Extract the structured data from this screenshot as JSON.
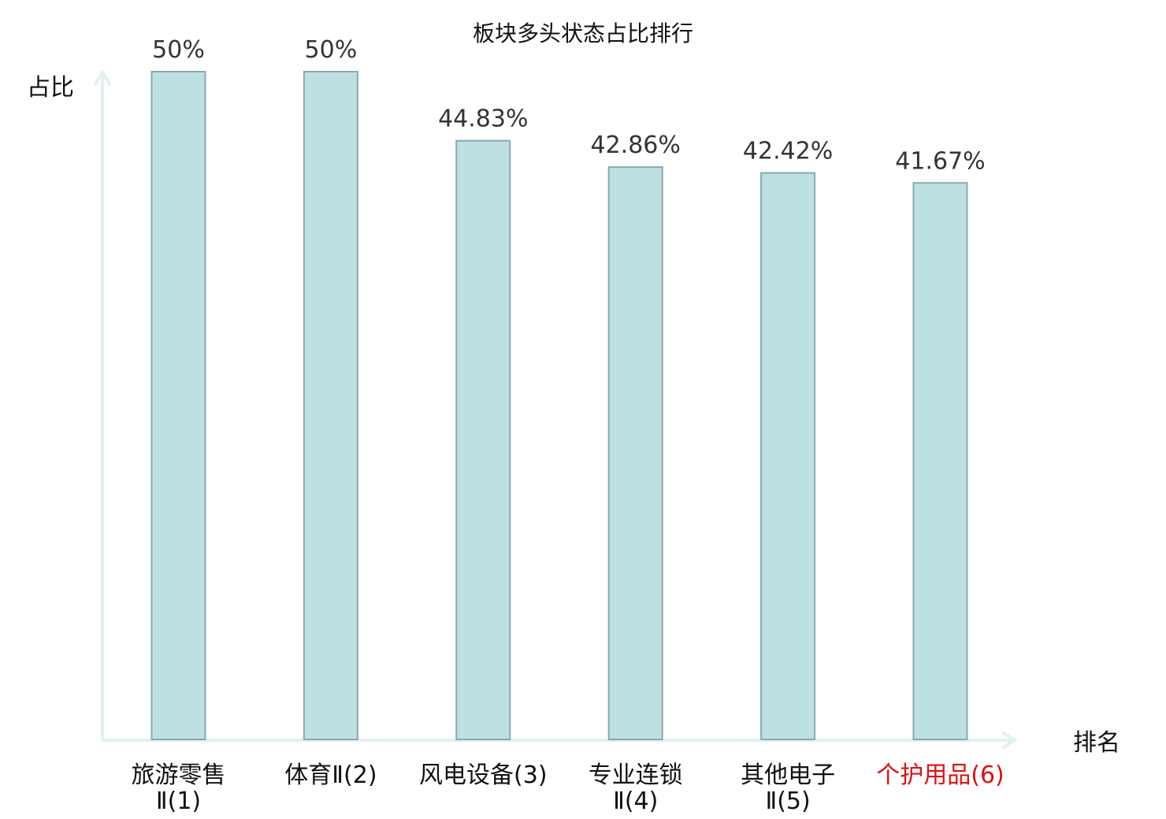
{
  "chart_data": {
    "type": "bar",
    "title": "板块多头状态占比排行",
    "ylabel": "占比",
    "xlabel": "排名",
    "categories": [
      [
        "旅游零售",
        "Ⅱ(1)"
      ],
      [
        "体育Ⅱ(2)"
      ],
      [
        "风电设备(3)"
      ],
      [
        "专业连锁",
        "Ⅱ(4)"
      ],
      [
        "其他电子",
        "Ⅱ(5)"
      ],
      [
        "个护用品(6)"
      ]
    ],
    "values": [
      50,
      50,
      44.83,
      42.86,
      42.42,
      41.67
    ],
    "value_labels": [
      "50%",
      "50%",
      "44.83%",
      "42.86%",
      "42.42%",
      "41.67%"
    ],
    "highlight_index": 5,
    "ylim": [
      0,
      50
    ],
    "grid": false,
    "legend": "none",
    "colors": {
      "bar_fill": "#bde0e3",
      "bar_stroke": "#8aa9ad",
      "axis": "#e0f2f0",
      "text": "#333333",
      "label": "#111111",
      "highlight": "#dd1111"
    }
  }
}
